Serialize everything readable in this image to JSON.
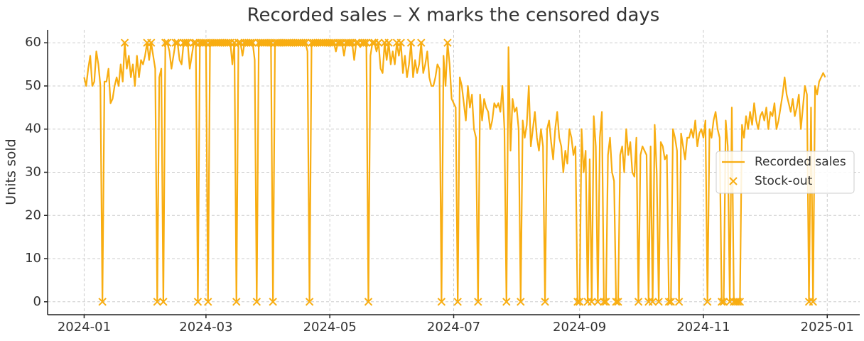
{
  "chart_data": {
    "type": "line",
    "title": "Recorded sales – X marks the censored days",
    "y_label": "Units sold",
    "xlim": [
      -18,
      382
    ],
    "xticks": [
      {
        "value": 0,
        "label": "2024-01"
      },
      {
        "value": 60,
        "label": "2024-03"
      },
      {
        "value": 121,
        "label": "2024-05"
      },
      {
        "value": 182,
        "label": "2024-07"
      },
      {
        "value": 244,
        "label": "2024-09"
      },
      {
        "value": 305,
        "label": "2024-11"
      },
      {
        "value": 366,
        "label": "2025-01"
      }
    ],
    "ylim": [
      -3,
      63
    ],
    "yticks": [
      0,
      10,
      20,
      30,
      40,
      50,
      60
    ],
    "grid": true,
    "legend": "right",
    "series": [
      {
        "name": "Recorded sales",
        "color": "#f8ad11",
        "values": [
          52,
          50,
          54,
          57,
          50,
          51,
          58,
          55,
          50,
          0,
          51,
          51,
          54,
          46,
          47,
          50,
          52,
          50,
          55,
          51,
          60,
          54,
          57,
          52,
          55,
          50,
          57,
          52,
          56,
          55,
          57,
          60,
          56,
          60,
          57,
          54,
          0,
          52,
          54,
          0,
          60,
          60,
          58,
          54,
          57,
          60,
          60,
          56,
          55,
          60,
          60,
          60,
          54,
          57,
          60,
          60,
          0,
          60,
          60,
          60,
          60,
          0,
          60,
          60,
          60,
          60,
          60,
          60,
          60,
          60,
          60,
          60,
          60,
          55,
          60,
          0,
          60,
          60,
          57,
          60,
          60,
          60,
          60,
          60,
          56,
          0,
          60,
          60,
          60,
          60,
          60,
          60,
          60,
          0,
          60,
          60,
          60,
          60,
          60,
          60,
          60,
          60,
          60,
          60,
          60,
          60,
          60,
          60,
          60,
          60,
          58,
          0,
          60,
          60,
          60,
          60,
          60,
          60,
          60,
          60,
          60,
          60,
          60,
          60,
          58,
          60,
          60,
          60,
          57,
          60,
          60,
          60,
          60,
          56,
          60,
          60,
          59,
          60,
          60,
          60,
          0,
          57,
          60,
          60,
          58,
          60,
          54,
          53,
          60,
          56,
          60,
          55,
          58,
          55,
          60,
          57,
          60,
          53,
          57,
          52,
          55,
          60,
          52,
          56,
          53,
          55,
          60,
          53,
          55,
          58,
          52,
          50,
          50,
          52,
          55,
          54,
          0,
          57,
          50,
          60,
          55,
          47,
          46,
          45,
          0,
          52,
          50,
          46,
          42,
          50,
          45,
          48,
          40,
          38,
          0,
          48,
          42,
          47,
          45,
          44,
          40,
          42,
          46,
          45,
          46,
          44,
          50,
          40,
          0,
          59,
          35,
          47,
          44,
          45,
          40,
          0,
          42,
          38,
          41,
          50,
          36,
          40,
          44,
          38,
          35,
          40,
          36,
          0,
          40,
          42,
          37,
          33,
          40,
          44,
          38,
          36,
          30,
          35,
          32,
          40,
          38,
          34,
          36,
          0,
          0,
          40,
          30,
          35,
          0,
          33,
          0,
          43,
          36,
          0,
          38,
          44,
          0,
          0,
          34,
          38,
          30,
          28,
          0,
          0,
          34,
          36,
          30,
          40,
          34,
          37,
          30,
          29,
          38,
          0,
          34,
          36,
          35,
          34,
          0,
          36,
          0,
          41,
          30,
          0,
          37,
          36,
          33,
          34,
          0,
          0,
          40,
          38,
          35,
          0,
          39,
          36,
          33,
          38,
          38,
          40,
          38,
          42,
          36,
          39,
          40,
          38,
          42,
          0,
          40,
          38,
          42,
          44,
          40,
          38,
          0,
          0,
          42,
          36,
          0,
          45,
          0,
          0,
          0,
          0,
          41,
          38,
          43,
          40,
          44,
          41,
          46,
          42,
          40,
          43,
          44,
          42,
          45,
          40,
          44,
          43,
          46,
          40,
          42,
          45,
          48,
          52,
          48,
          46,
          44,
          47,
          43,
          45,
          48,
          40,
          45,
          50,
          48,
          0,
          45,
          0,
          50,
          48,
          51,
          52,
          53,
          52
        ]
      },
      {
        "name": "Stock-out",
        "color": "#f8ad11",
        "marker": "x",
        "x": [
          9,
          20,
          31,
          33,
          36,
          39,
          40,
          41,
          45,
          46,
          49,
          50,
          51,
          54,
          55,
          56,
          57,
          58,
          59,
          60,
          61,
          62,
          63,
          64,
          65,
          66,
          67,
          68,
          69,
          70,
          71,
          72,
          74,
          75,
          76,
          77,
          79,
          80,
          81,
          82,
          83,
          85,
          86,
          87,
          88,
          89,
          90,
          91,
          92,
          93,
          94,
          95,
          96,
          97,
          98,
          99,
          100,
          101,
          102,
          103,
          104,
          105,
          106,
          107,
          108,
          109,
          111,
          112,
          113,
          114,
          115,
          116,
          117,
          118,
          119,
          120,
          121,
          122,
          123,
          125,
          126,
          127,
          129,
          130,
          131,
          132,
          134,
          135,
          137,
          138,
          139,
          140,
          142,
          143,
          145,
          148,
          150,
          154,
          156,
          161,
          166,
          176,
          179,
          184,
          194,
          208,
          215,
          227,
          243,
          244,
          248,
          250,
          253,
          256,
          257,
          262,
          263,
          273,
          278,
          280,
          283,
          288,
          289,
          293,
          307,
          314,
          315,
          318,
          320,
          321,
          322,
          323,
          357,
          359
        ],
        "values": [
          0,
          60,
          60,
          60,
          0,
          0,
          60,
          60,
          60,
          60,
          60,
          60,
          60,
          60,
          60,
          0,
          60,
          60,
          60,
          60,
          0,
          60,
          60,
          60,
          60,
          60,
          60,
          60,
          60,
          60,
          60,
          60,
          60,
          0,
          60,
          60,
          60,
          60,
          60,
          60,
          60,
          0,
          60,
          60,
          60,
          60,
          60,
          60,
          60,
          0,
          60,
          60,
          60,
          60,
          60,
          60,
          60,
          60,
          60,
          60,
          60,
          60,
          60,
          60,
          60,
          60,
          0,
          60,
          60,
          60,
          60,
          60,
          60,
          60,
          60,
          60,
          60,
          60,
          60,
          60,
          60,
          60,
          60,
          60,
          60,
          60,
          60,
          60,
          60,
          60,
          60,
          0,
          60,
          60,
          60,
          60,
          60,
          60,
          60,
          60,
          60,
          0,
          60,
          0,
          0,
          0,
          0,
          0,
          0,
          0,
          0,
          0,
          0,
          0,
          0,
          0,
          0,
          0,
          0,
          0,
          0,
          0,
          0,
          0,
          0,
          0,
          0,
          0,
          0,
          0,
          0,
          0,
          0,
          0
        ]
      }
    ]
  }
}
